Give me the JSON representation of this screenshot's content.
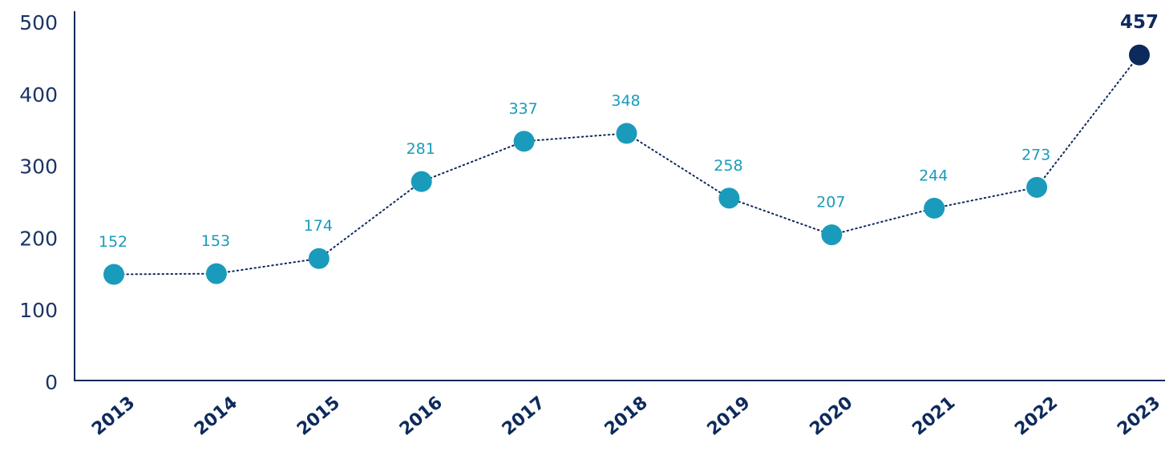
{
  "chart_data": {
    "type": "line",
    "categories": [
      "2013",
      "2014",
      "2015",
      "2016",
      "2017",
      "2018",
      "2019",
      "2020",
      "2021",
      "2022",
      "2023"
    ],
    "series": [
      {
        "color": "#1a9bbb",
        "values": [
          152,
          153,
          174,
          281,
          337,
          348,
          258,
          207,
          244,
          273,
          457
        ]
      }
    ],
    "highlight": {
      "index": 10,
      "color": "#0d2a5c"
    },
    "ylim": [
      0,
      500
    ],
    "yticks": [
      0,
      100,
      200,
      300,
      400,
      500
    ],
    "grid": false
  }
}
